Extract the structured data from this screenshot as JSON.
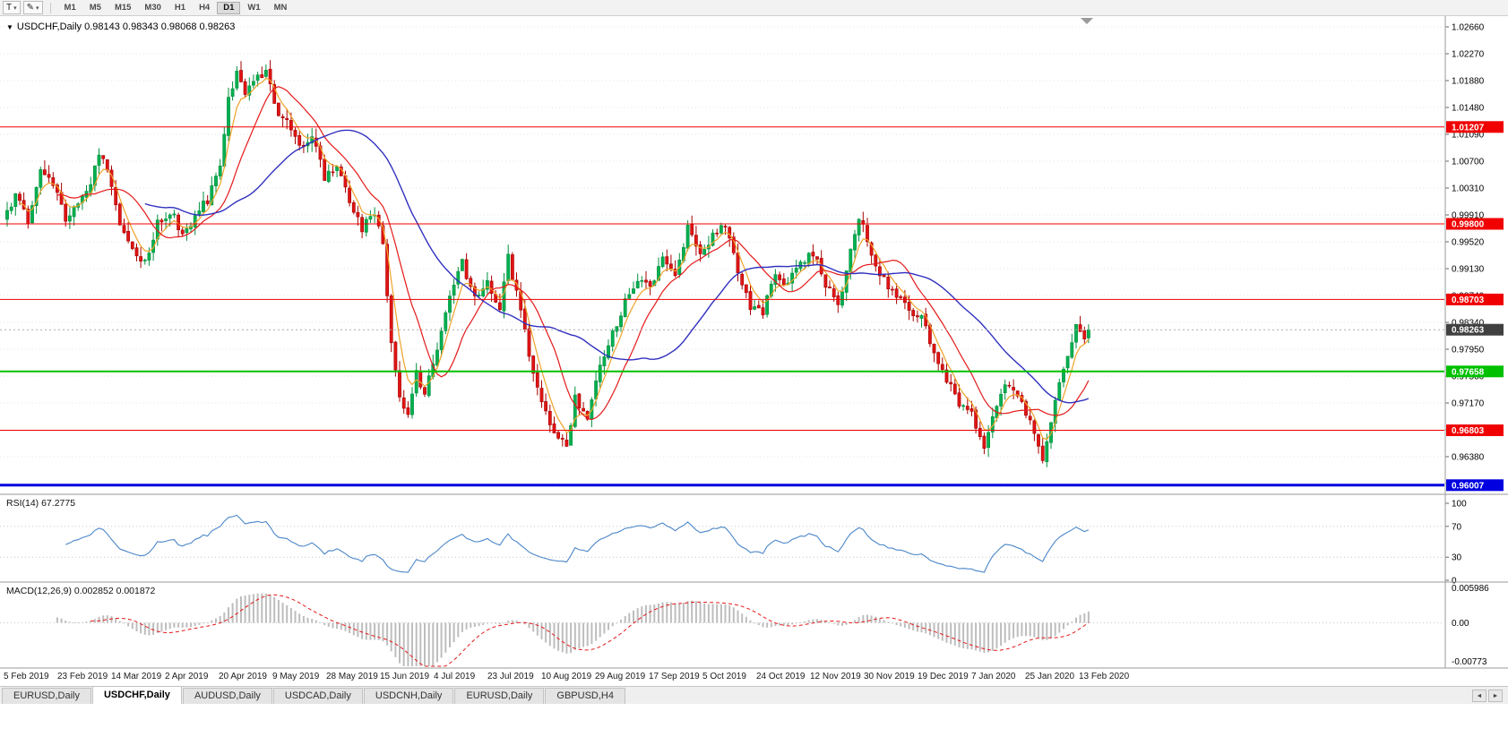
{
  "toolbar": {
    "tool_buttons": [
      {
        "name": "text-tool",
        "label": "T"
      },
      {
        "name": "draw-tool",
        "label": "✎"
      }
    ],
    "dropdown_glyph": "▾",
    "timeframes": [
      "M1",
      "M5",
      "M15",
      "M30",
      "H1",
      "H4",
      "D1",
      "W1",
      "MN"
    ],
    "active_timeframe": "D1"
  },
  "chart_data": {
    "type": "candlestick",
    "symbol": "USDCHF",
    "timeframe": "Daily",
    "title_line": "USDCHF,Daily 0.98143 0.98343 0.98068 0.98263",
    "symbol_dropdown_glyph": "▼",
    "ohlc": {
      "open": 0.98143,
      "high": 0.98343,
      "low": 0.98068,
      "close": 0.98263
    },
    "y_range": [
      0.9599,
      1.0266
    ],
    "y_axis_ticks": [
      "1.02660",
      "1.02270",
      "1.01880",
      "1.01480",
      "1.01090",
      "1.00700",
      "1.00310",
      "0.99910",
      "0.99520",
      "0.99130",
      "0.98740",
      "0.98340",
      "0.97950",
      "0.97560",
      "0.97170",
      "0.96770",
      "0.96380",
      "0.95990"
    ],
    "x_axis_labels": [
      "5 Feb 2019",
      "23 Feb 2019",
      "14 Mar 2019",
      "2 Apr 2019",
      "20 Apr 2019",
      "9 May 2019",
      "28 May 2019",
      "15 Jun 2019",
      "4 Jul 2019",
      "23 Jul 2019",
      "10 Aug 2019",
      "29 Aug 2019",
      "17 Sep 2019",
      "5 Oct 2019",
      "24 Oct 2019",
      "12 Nov 2019",
      "30 Nov 2019",
      "19 Dec 2019",
      "7 Jan 2020",
      "25 Jan 2020",
      "13 Feb 2020"
    ],
    "price_levels": [
      {
        "label": "1.01207",
        "price": 1.01207,
        "color": "#f00000",
        "width": 1,
        "kind": "resistance"
      },
      {
        "label": "0.99800",
        "price": 0.998,
        "color": "#f00000",
        "width": 1,
        "kind": "resistance"
      },
      {
        "label": "0.98703",
        "price": 0.98703,
        "color": "#f00000",
        "width": 1,
        "kind": "resistance"
      },
      {
        "label": "0.98263",
        "price": 0.98263,
        "color": "#404040",
        "width": 1,
        "kind": "current-price"
      },
      {
        "label": "0.97658",
        "price": 0.97658,
        "color": "#00c000",
        "width": 2,
        "kind": "support"
      },
      {
        "label": "0.96803",
        "price": 0.96803,
        "color": "#f00000",
        "width": 1,
        "kind": "support"
      },
      {
        "label": "0.96007",
        "price": 0.96007,
        "color": "#0000e0",
        "width": 3,
        "kind": "support"
      }
    ],
    "candles": {
      "count": 260,
      "last": {
        "open": 0.98143,
        "high": 0.98343,
        "low": 0.98068,
        "close": 0.98263
      },
      "waypoints": [
        [
          0,
          0.9995
        ],
        [
          2,
          1.0025
        ],
        [
          5,
          0.9985
        ],
        [
          8,
          1.006
        ],
        [
          11,
          1.0038
        ],
        [
          14,
          0.999
        ],
        [
          17,
          1.001
        ],
        [
          20,
          1.004
        ],
        [
          22,
          1.0085
        ],
        [
          24,
          1.006
        ],
        [
          27,
          0.998
        ],
        [
          30,
          0.994
        ],
        [
          33,
          0.9925
        ],
        [
          36,
          0.998
        ],
        [
          39,
          1.0
        ],
        [
          42,
          0.9965
        ],
        [
          45,
          0.999
        ],
        [
          48,
          1.0015
        ],
        [
          51,
          1.007
        ],
        [
          53,
          1.016
        ],
        [
          55,
          1.0205
        ],
        [
          57,
          1.017
        ],
        [
          60,
          1.019
        ],
        [
          62,
          1.0205
        ],
        [
          64,
          1.015
        ],
        [
          67,
          1.0125
        ],
        [
          70,
          1.009
        ],
        [
          73,
          1.0105
        ],
        [
          76,
          1.0048
        ],
        [
          79,
          1.0065
        ],
        [
          82,
          1.0015
        ],
        [
          85,
          0.9975
        ],
        [
          88,
          0.9998
        ],
        [
          90,
          0.9945
        ],
        [
          92,
          0.981
        ],
        [
          94,
          0.9725
        ],
        [
          96,
          0.97
        ],
        [
          98,
          0.9762
        ],
        [
          100,
          0.973
        ],
        [
          103,
          0.9802
        ],
        [
          106,
          0.988
        ],
        [
          109,
          0.9922
        ],
        [
          112,
          0.9872
        ],
        [
          115,
          0.9893
        ],
        [
          118,
          0.9852
        ],
        [
          120,
          0.993
        ],
        [
          122,
          0.9882
        ],
        [
          125,
          0.9792
        ],
        [
          128,
          0.9718
        ],
        [
          131,
          0.9682
        ],
        [
          134,
          0.9662
        ],
        [
          136,
          0.9725
        ],
        [
          139,
          0.97
        ],
        [
          142,
          0.9768
        ],
        [
          145,
          0.9822
        ],
        [
          148,
          0.9868
        ],
        [
          151,
          0.9902
        ],
        [
          154,
          0.9888
        ],
        [
          157,
          0.9928
        ],
        [
          160,
          0.9908
        ],
        [
          163,
          0.9972
        ],
        [
          166,
          0.9938
        ],
        [
          169,
          0.9962
        ],
        [
          172,
          0.9975
        ],
        [
          175,
          0.991
        ],
        [
          178,
          0.9862
        ],
        [
          181,
          0.9852
        ],
        [
          184,
          0.9905
        ],
        [
          187,
          0.9892
        ],
        [
          190,
          0.9922
        ],
        [
          193,
          0.9938
        ],
        [
          196,
          0.9892
        ],
        [
          199,
          0.9858
        ],
        [
          202,
          0.9945
        ],
        [
          204,
          0.9992
        ],
        [
          207,
          0.9938
        ],
        [
          210,
          0.9898
        ],
        [
          213,
          0.9872
        ],
        [
          216,
          0.9858
        ],
        [
          219,
          0.9842
        ],
        [
          222,
          0.9792
        ],
        [
          225,
          0.9756
        ],
        [
          228,
          0.9718
        ],
        [
          231,
          0.9702
        ],
        [
          234,
          0.9648
        ],
        [
          237,
          0.9722
        ],
        [
          240,
          0.975
        ],
        [
          243,
          0.9722
        ],
        [
          246,
          0.9682
        ],
        [
          248,
          0.963
        ],
        [
          250,
          0.969
        ],
        [
          252,
          0.9755
        ],
        [
          254,
          0.979
        ],
        [
          256,
          0.983
        ],
        [
          258,
          0.9808
        ],
        [
          259,
          0.98263
        ]
      ]
    },
    "indicators": {
      "rsi": {
        "label": "RSI(14) 67.2775",
        "period": 14,
        "value": 67.2775,
        "axis_ticks": [
          "100",
          "70",
          "30",
          "0"
        ],
        "level_lines": [
          70,
          30
        ]
      },
      "macd": {
        "label": "MACD(12,26,9) 0.002852 0.001872",
        "fast": 12,
        "slow": 26,
        "signal_period": 9,
        "macd_value": 0.002852,
        "signal_value": 0.001872,
        "axis_ticks": [
          "0.005986",
          "0.00",
          "-0.00773"
        ]
      }
    },
    "colors": {
      "bull": "#00b050",
      "bull_stroke": "#008f3c",
      "bear": "#e01515",
      "bear_stroke": "#a80000",
      "ma_fast": "#efa228",
      "ma_mid": "#e51919",
      "ma_slow": "#3030c0",
      "rsi_line": "#4a86c8",
      "macd_hist": "#bdbdbd",
      "macd_signal": "#e51919",
      "grid": "#e4e4e4",
      "axis_text": "#000000",
      "pane_border": "#9a9a9a"
    }
  },
  "tabs": {
    "items": [
      "EURUSD,Daily",
      "USDCHF,Daily",
      "AUDUSD,Daily",
      "USDCAD,Daily",
      "USDCNH,Daily",
      "EURUSD,Daily",
      "GBPUSD,H4"
    ],
    "active_index": 1,
    "left_arrow": "◄",
    "right_arrow": "►"
  }
}
